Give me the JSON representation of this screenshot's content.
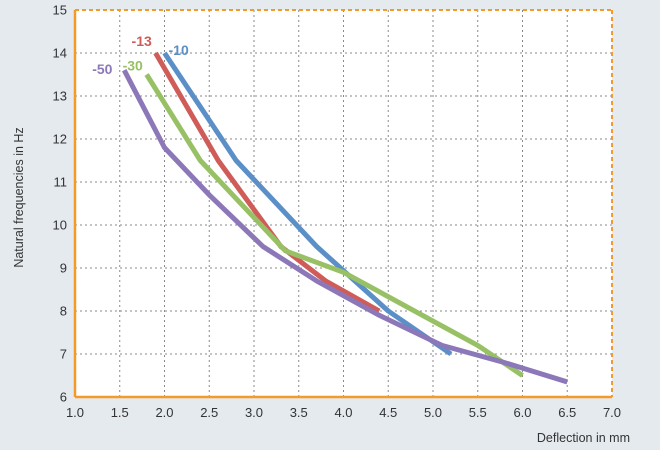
{
  "chart_data": {
    "type": "line",
    "xlabel": "Deflection in mm",
    "ylabel": "Natural frequencies in Hz",
    "xlim": [
      1.0,
      7.0
    ],
    "ylim": [
      6,
      15
    ],
    "x_ticks": [
      "1.0",
      "1.5",
      "2.0",
      "2.5",
      "3.0",
      "3.5",
      "4.0",
      "4.5",
      "5.0",
      "5.5",
      "6.0",
      "6.5",
      "7.0"
    ],
    "y_ticks": [
      "6",
      "7",
      "8",
      "9",
      "10",
      "11",
      "12",
      "13",
      "14",
      "15"
    ],
    "grid": true,
    "colors": {
      "plot_border": "#f39a2b",
      "grid": "#8a8a8a",
      "background": "#e5eaef",
      "plot_background": "#ffffff"
    },
    "series": [
      {
        "name": "-10",
        "color": "#5b8fc7",
        "x": [
          2.0,
          2.8,
          3.7,
          4.5,
          5.2
        ],
        "y": [
          14.0,
          11.5,
          9.5,
          8.0,
          7.0
        ]
      },
      {
        "name": "-13",
        "color": "#cf5c58",
        "x": [
          1.9,
          2.6,
          3.3,
          3.8,
          4.4
        ],
        "y": [
          14.0,
          11.5,
          9.5,
          8.7,
          8.0
        ]
      },
      {
        "name": "-30",
        "color": "#98c065",
        "x": [
          1.8,
          2.4,
          3.35,
          4.0,
          5.5,
          6.0
        ],
        "y": [
          13.5,
          11.5,
          9.4,
          8.9,
          7.2,
          6.5
        ]
      },
      {
        "name": "-50",
        "color": "#8c78b8",
        "x": [
          1.55,
          2.0,
          2.5,
          3.1,
          3.7,
          4.4,
          5.1,
          5.8,
          6.5
        ],
        "y": [
          13.6,
          11.8,
          10.7,
          9.5,
          8.7,
          7.9,
          7.2,
          6.8,
          6.35
        ]
      }
    ]
  }
}
